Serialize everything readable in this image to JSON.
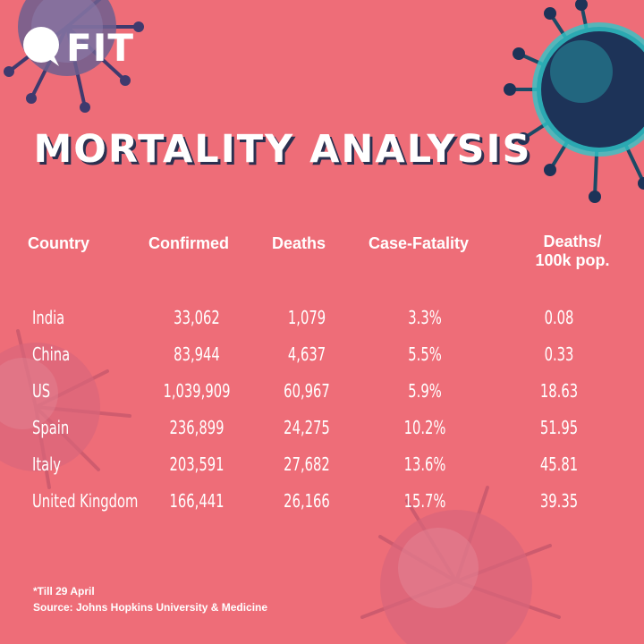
{
  "brand": {
    "logo_text": "FIT"
  },
  "title": "MORTALITY ANALYSIS",
  "chart_data": {
    "type": "table",
    "title": "MORTALITY ANALYSIS",
    "columns": [
      "Country",
      "Confirmed",
      "Deaths",
      "Case-Fatality",
      "Deaths/\n100k pop."
    ],
    "rows": [
      [
        "India",
        "33,062",
        "1,079",
        "3.3%",
        "0.08"
      ],
      [
        "China",
        "83,944",
        "4,637",
        "5.5%",
        "0.33"
      ],
      [
        "US",
        "1,039,909",
        "60,967",
        "5.9%",
        "18.63"
      ],
      [
        "Spain",
        "236,899",
        "24,275",
        "10.2%",
        "51.95"
      ],
      [
        "Italy",
        "203,591",
        "27,682",
        "13.6%",
        "45.81"
      ],
      [
        "United Kingdom",
        "166,441",
        "26,166",
        "15.7%",
        "39.35"
      ]
    ]
  },
  "footnotes": {
    "date_note": "*Till 29 April",
    "source": "Source: Johns Hopkins University & Medicine"
  },
  "colors": {
    "background": "#ee6d78",
    "text": "#ffffff",
    "title_shadow": "#2b3050",
    "virus_teal": "#2fc7c9",
    "virus_navy": "#1d3358"
  }
}
